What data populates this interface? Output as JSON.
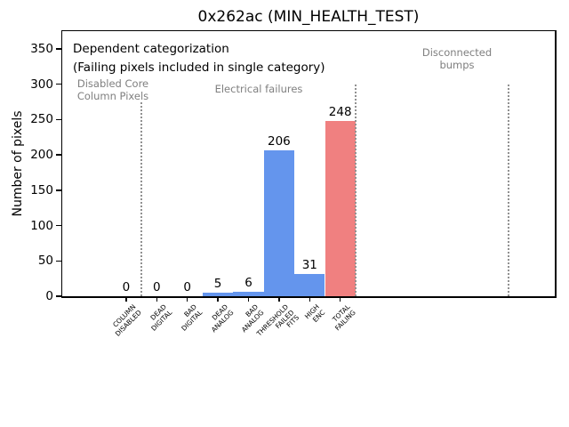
{
  "chart_data": {
    "type": "bar",
    "title": "0x262ac (MIN_HEALTH_TEST)",
    "ylabel": "Number of pixels",
    "xlabel": "",
    "ylim": [
      0,
      377
    ],
    "yticks": [
      0,
      50,
      100,
      150,
      200,
      250,
      300,
      350
    ],
    "grid": false,
    "legend": null,
    "categories": [
      "COLUMN\nDISABLED",
      "DEAD\nDIGITAL",
      "BAD\nDIGITAL",
      "DEAD\nANALOG",
      "BAD\nANALOG",
      "THRESHOLD\nFAILED\nFITS",
      "HIGH\nENC",
      "TOTAL\nFAILING"
    ],
    "values": [
      0,
      0,
      0,
      5,
      6,
      206,
      31,
      248
    ],
    "bar_colors": [
      "#6495ed",
      "#6495ed",
      "#6495ed",
      "#6495ed",
      "#6495ed",
      "#6495ed",
      "#6495ed",
      "#f08080"
    ],
    "annotations": [
      {
        "text": "Dependent categorization",
        "color": "#000000"
      },
      {
        "text": "(Failing pixels included in single category)",
        "color": "#000000"
      },
      {
        "text": "Disabled Core\nColumn Pixels",
        "color": "#7f7f7f"
      },
      {
        "text": "Electrical failures",
        "color": "#7f7f7f"
      },
      {
        "text": "Disconnected\nbumps",
        "color": "#7f7f7f"
      }
    ],
    "separators": {
      "style": "dotted",
      "color": "#919191",
      "positions_slot": [
        0.5,
        7.5,
        12.5
      ]
    },
    "colors": {
      "bar_blue": "#6495ed",
      "bar_total_red": "#f08080",
      "region_text_gray": "#7f7f7f"
    }
  }
}
